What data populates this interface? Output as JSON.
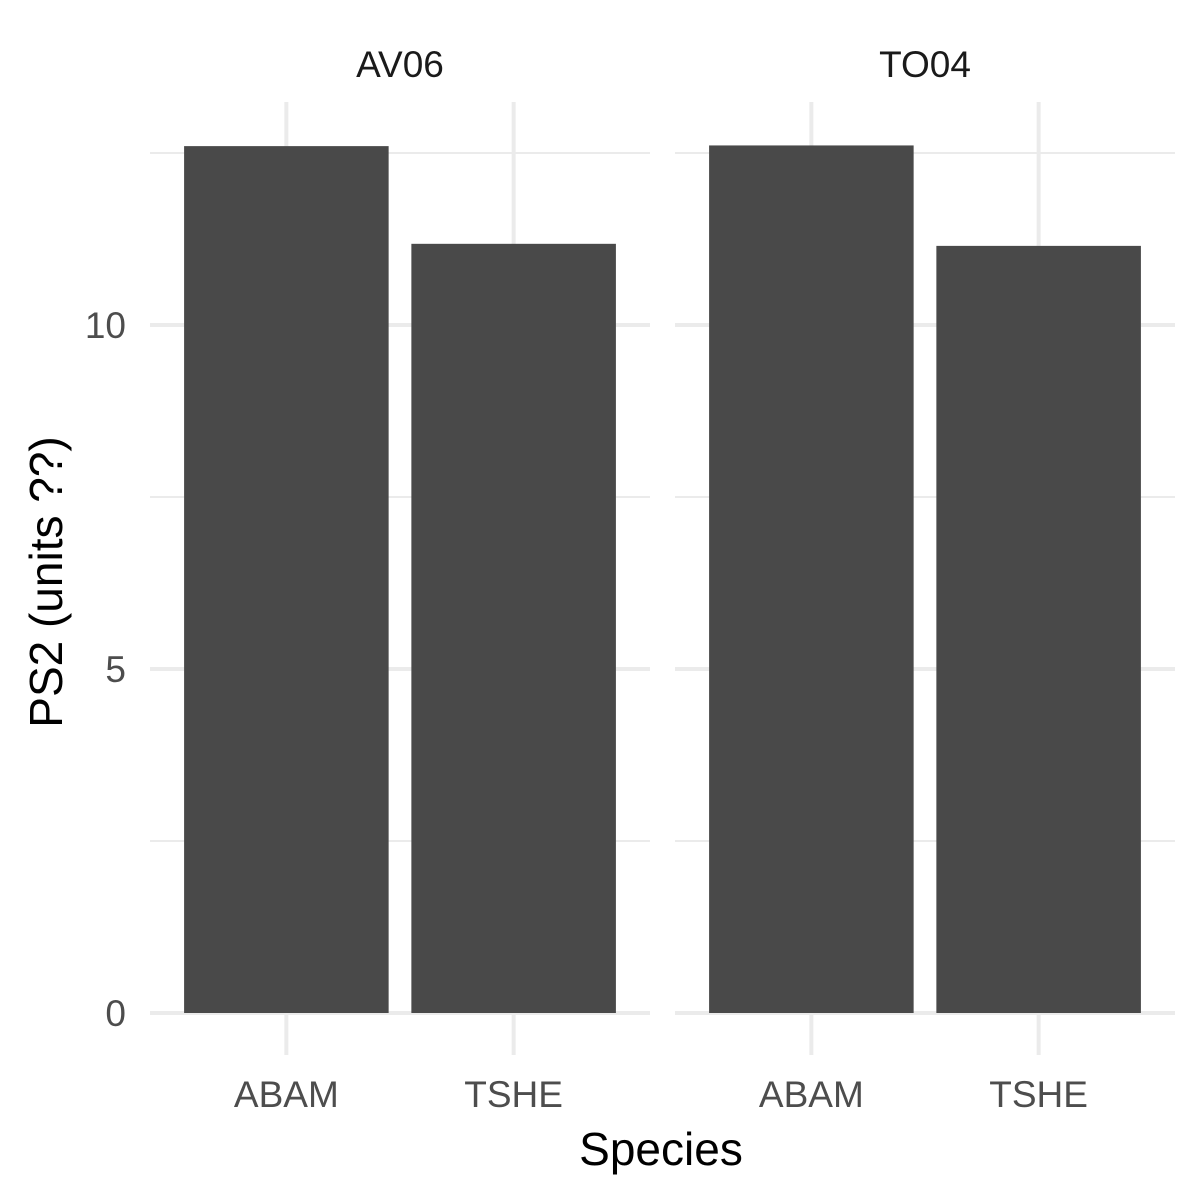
{
  "chart_data": {
    "type": "bar",
    "facet_by": "site",
    "panels": [
      {
        "label": "AV06",
        "categories": [
          "ABAM",
          "TSHE"
        ],
        "values": [
          12.6,
          11.18
        ]
      },
      {
        "label": "TO04",
        "categories": [
          "ABAM",
          "TSHE"
        ],
        "values": [
          12.61,
          11.15
        ]
      }
    ],
    "xlabel": "Species",
    "ylabel": "PS2 (units ??)",
    "ylim": [
      0,
      12.6
    ],
    "y_major_ticks": [
      0,
      5,
      10
    ],
    "y_tick_labels": [
      "0",
      "5",
      "10"
    ],
    "y_minor_ticks": [
      2.5,
      7.5,
      12.5
    ],
    "grid": true,
    "bar_color": "#494949",
    "grid_color": "#ebebeb",
    "theme": "minimal"
  }
}
